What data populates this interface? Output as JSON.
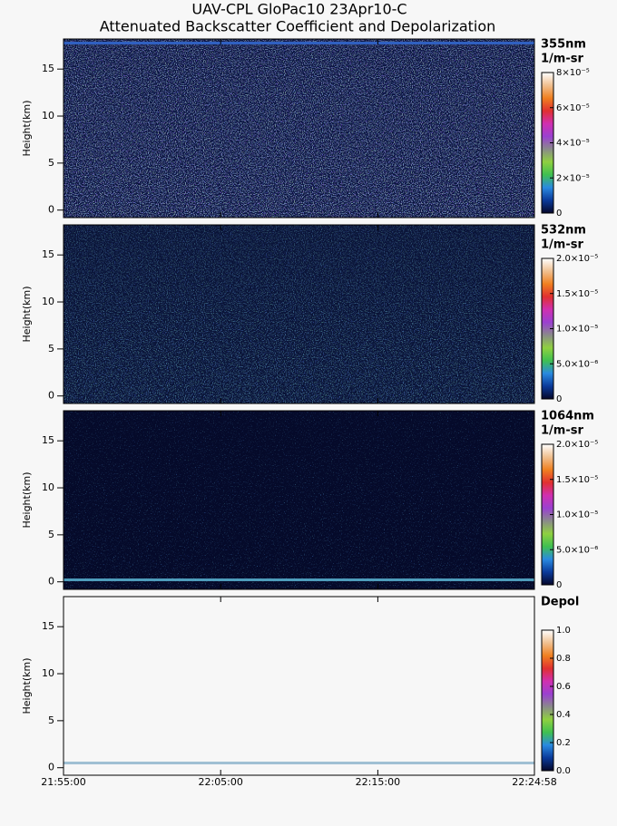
{
  "chart_data": [
    {
      "type": "heatmap",
      "title": "UAV-CPL GloPac10 23Apr10-C",
      "subtitle": "Attenuated Backscatter Coefficient and Depolarization",
      "ylabel": "Height(km)",
      "ylim": [
        -0.8,
        18.2
      ],
      "yticks": [
        0,
        5,
        10,
        15
      ],
      "xlim": [
        78900,
        80698
      ],
      "colorbar": {
        "label": [
          "355nm",
          "1/m-sr"
        ],
        "lim": [
          0,
          8e-05
        ],
        "ticks": [
          0,
          {
            "value": 2e-05,
            "label": "2×10⁻⁵"
          },
          {
            "value": 4e-05,
            "label": "4×10⁻⁵"
          },
          {
            "value": 6e-05,
            "label": "6×10⁻⁵"
          },
          {
            "value": 8e-05,
            "label": "8×10⁻⁵"
          }
        ],
        "colors": [
          "#05072a",
          "#0a3a9a",
          "#2a8ae0",
          "#3fc050",
          "#8fd040",
          "#8a8a8a",
          "#9a40d0",
          "#d030b0",
          "#e03030",
          "#f08020",
          "#f0c090",
          "#ffffff"
        ]
      }
    },
    {
      "type": "heatmap",
      "ylabel": "Height(km)",
      "ylim": [
        -0.8,
        18.2
      ],
      "yticks": [
        0,
        5,
        10,
        15
      ],
      "xlim": [
        78900,
        80698
      ],
      "colorbar": {
        "label": [
          "532nm",
          "1/m-sr"
        ],
        "lim": [
          0,
          2e-05
        ],
        "ticks": [
          0,
          {
            "value": 5e-06,
            "label": "5.0×10⁻⁶"
          },
          {
            "value": 1e-05,
            "label": "1.0×10⁻⁵"
          },
          {
            "value": 1.5e-05,
            "label": "1.5×10⁻⁵"
          },
          {
            "value": 2e-05,
            "label": "2.0×10⁻⁵"
          }
        ],
        "colors": [
          "#05072a",
          "#0a3a9a",
          "#2a8ae0",
          "#3fc050",
          "#8fd040",
          "#8a8a8a",
          "#9a40d0",
          "#d030b0",
          "#e03030",
          "#f08020",
          "#f0c090",
          "#ffffff"
        ]
      }
    },
    {
      "type": "heatmap",
      "ylabel": "Height(km)",
      "ylim": [
        -0.8,
        18.2
      ],
      "yticks": [
        0,
        5,
        10,
        15
      ],
      "xlim": [
        78900,
        80698
      ],
      "colorbar": {
        "label": [
          "1064nm",
          "1/m-sr"
        ],
        "lim": [
          0,
          2e-05
        ],
        "ticks": [
          0,
          {
            "value": 5e-06,
            "label": "5.0×10⁻⁶"
          },
          {
            "value": 1e-05,
            "label": "1.0×10⁻⁵"
          },
          {
            "value": 1.5e-05,
            "label": "1.5×10⁻⁵"
          },
          {
            "value": 2e-05,
            "label": "2.0×10⁻⁵"
          }
        ],
        "colors": [
          "#05072a",
          "#0a3a9a",
          "#2a8ae0",
          "#3fc050",
          "#8fd040",
          "#8a8a8a",
          "#9a40d0",
          "#d030b0",
          "#e03030",
          "#f08020",
          "#f0c090",
          "#ffffff"
        ]
      }
    },
    {
      "type": "heatmap",
      "ylabel": "Height(km)",
      "ylim": [
        -0.8,
        18.2
      ],
      "yticks": [
        0,
        5,
        10,
        15
      ],
      "xlim": [
        78900,
        80698
      ],
      "xticks": [
        {
          "value": 78900,
          "label": "21:55:00"
        },
        {
          "value": 79500,
          "label": "22:05:00"
        },
        {
          "value": 80100,
          "label": "22:15:00"
        },
        {
          "value": 80698,
          "label": "22:24:58"
        }
      ],
      "colorbar": {
        "label": [
          "Depol"
        ],
        "lim": [
          0,
          1
        ],
        "ticks": [
          {
            "value": 0,
            "label": "0.0"
          },
          {
            "value": 0.2,
            "label": "0.2"
          },
          {
            "value": 0.4,
            "label": "0.4"
          },
          {
            "value": 0.6,
            "label": "0.6"
          },
          {
            "value": 0.8,
            "label": "0.8"
          },
          {
            "value": 1,
            "label": "1.0"
          }
        ],
        "colors": [
          "#05072a",
          "#0a3a9a",
          "#2a8ae0",
          "#3fc050",
          "#8fd040",
          "#8a8a8a",
          "#9a40d0",
          "#d030b0",
          "#e03030",
          "#f08020",
          "#f0c090",
          "#ffffff"
        ]
      }
    }
  ]
}
